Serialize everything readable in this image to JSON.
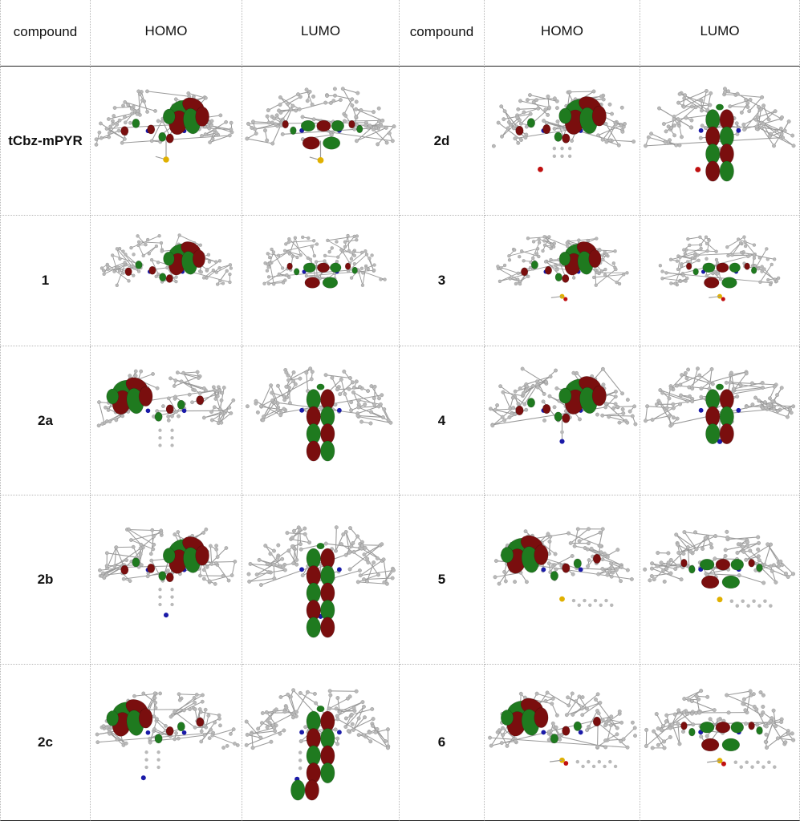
{
  "table": {
    "headers": [
      "compound",
      "HOMO",
      "LUMO",
      "compound",
      "HOMO",
      "LUMO"
    ],
    "rows": [
      {
        "left": {
          "name": "tCbz-mPYR",
          "homo_lobe": "top-right",
          "lumo_shape": "wide",
          "tail": "S"
        },
        "right": {
          "name": "2d",
          "homo_lobe": "top-right",
          "lumo_shape": "vertical",
          "tail": "Br"
        }
      },
      {
        "left": {
          "name": "1",
          "homo_lobe": "top-right",
          "lumo_shape": "wide",
          "tail": "none"
        },
        "right": {
          "name": "3",
          "homo_lobe": "top-right",
          "lumo_shape": "wide",
          "tail": "SO2"
        }
      },
      {
        "left": {
          "name": "2a",
          "homo_lobe": "left",
          "lumo_shape": "vertical",
          "tail": "phenyl"
        },
        "right": {
          "name": "4",
          "homo_lobe": "top-right",
          "lumo_shape": "short",
          "tail": "CN"
        }
      },
      {
        "left": {
          "name": "2b",
          "homo_lobe": "top-right",
          "lumo_shape": "vertical-long",
          "tail": "CN-phenyl"
        },
        "right": {
          "name": "5",
          "homo_lobe": "left",
          "lumo_shape": "wide",
          "tail": "S-aryl"
        }
      },
      {
        "left": {
          "name": "2c",
          "homo_lobe": "left",
          "lumo_shape": "vertical-bent",
          "tail": "CN-phenyl-side"
        },
        "right": {
          "name": "6",
          "homo_lobe": "left",
          "lumo_shape": "wide",
          "tail": "SO-aryl"
        }
      }
    ]
  },
  "colors": {
    "orbital_red": "#7a0e0e",
    "orbital_green": "#1f7a1f",
    "atom_gray": "#b9b9b9",
    "atom_blue": "#1a1aa8",
    "atom_yellow": "#e0b000",
    "atom_red": "#c01010"
  }
}
